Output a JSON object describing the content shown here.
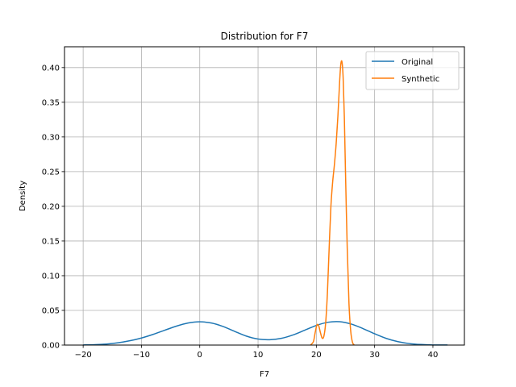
{
  "chart_data": {
    "type": "line",
    "title": "Distribution for F7",
    "xlabel": "F7",
    "ylabel": "Density",
    "xlim": [
      -23.2,
      45.4
    ],
    "ylim": [
      0,
      0.43
    ],
    "xticks": [
      -20,
      -10,
      0,
      10,
      20,
      30,
      40
    ],
    "yticks": [
      0.0,
      0.05,
      0.1,
      0.15,
      0.2,
      0.25,
      0.3,
      0.35,
      0.4
    ],
    "xtick_labels": [
      "−20",
      "−10",
      "0",
      "10",
      "20",
      "30",
      "40"
    ],
    "ytick_labels": [
      "0.00",
      "0.05",
      "0.10",
      "0.15",
      "0.20",
      "0.25",
      "0.30",
      "0.35",
      "0.40"
    ],
    "grid": true,
    "legend_position": "top-right",
    "series": [
      {
        "name": "Original",
        "color": "#1f77b4",
        "x": [
          -20,
          -18,
          -16,
          -14,
          -12,
          -10,
          -8,
          -6,
          -4,
          -2,
          0,
          2,
          4,
          6,
          8,
          10,
          12,
          14,
          16,
          18,
          20,
          22,
          24,
          26,
          28,
          30,
          32,
          34,
          36,
          38,
          40,
          42.5
        ],
        "y": [
          0.0002,
          0.0006,
          0.0015,
          0.0033,
          0.0062,
          0.0102,
          0.0154,
          0.0214,
          0.0273,
          0.0318,
          0.0335,
          0.0318,
          0.0268,
          0.0197,
          0.0129,
          0.0087,
          0.0077,
          0.0097,
          0.0146,
          0.0214,
          0.0283,
          0.0329,
          0.0337,
          0.0303,
          0.0238,
          0.0163,
          0.0096,
          0.0049,
          0.0021,
          0.0008,
          0.0002,
          0.0001
        ]
      },
      {
        "name": "Synthetic",
        "color": "#ff7f0e",
        "x": [
          19.0,
          19.5,
          19.8,
          20.1,
          20.4,
          20.7,
          21.0,
          21.3,
          21.6,
          21.9,
          22.2,
          22.5,
          22.8,
          23.1,
          23.4,
          23.7,
          24.0,
          24.2,
          24.4,
          24.6,
          24.8,
          25.0,
          25.3,
          25.6,
          25.9,
          26.2,
          26.5
        ],
        "y": [
          0.0,
          0.005,
          0.018,
          0.029,
          0.028,
          0.018,
          0.01,
          0.013,
          0.032,
          0.075,
          0.14,
          0.2,
          0.235,
          0.26,
          0.29,
          0.33,
          0.38,
          0.405,
          0.408,
          0.385,
          0.33,
          0.25,
          0.14,
          0.06,
          0.02,
          0.004,
          0.0
        ]
      }
    ]
  }
}
